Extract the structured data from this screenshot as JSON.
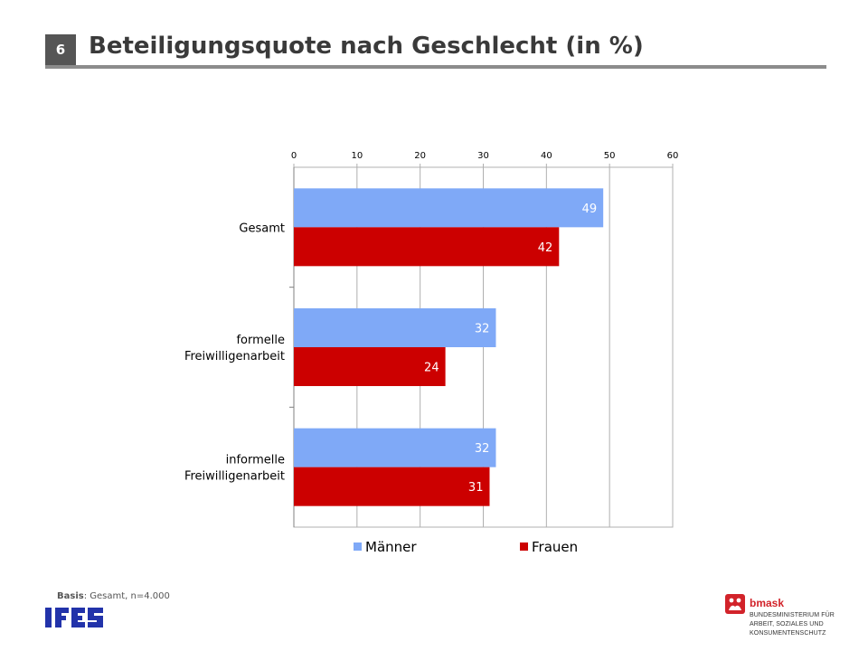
{
  "header": {
    "slide_number": "6",
    "title": "Beteiligungsquote nach Geschlecht (in %)"
  },
  "footer": {
    "basis_label": "Basis",
    "basis_text": ": Gesamt, n=4.000",
    "ifes_logo_text": "IFES",
    "bmask_name": "bmask",
    "bmask_lines": [
      "BUNDESMINISTERIUM FÜR",
      "ARBEIT, SOZIALES UND",
      "KONSUMENTENSCHUTZ"
    ]
  },
  "colors": {
    "maenner": "#7fa9f7",
    "frauen": "#cc0000",
    "label_text": "#ffffff",
    "grid": "#b0b0b0",
    "brand_red": "#d2232a",
    "ifes_blue": "#2233aa"
  },
  "chart_data": {
    "type": "bar",
    "orientation": "horizontal",
    "categories": [
      "Gesamt",
      "formelle Freiwilligenarbeit",
      "informelle Freiwilligenarbeit"
    ],
    "category_lines": [
      [
        "Gesamt"
      ],
      [
        "formelle",
        "Freiwilligenarbeit"
      ],
      [
        "informelle",
        "Freiwilligenarbeit"
      ]
    ],
    "series": [
      {
        "name": "Männer",
        "values": [
          49,
          32,
          32
        ]
      },
      {
        "name": "Frauen",
        "values": [
          42,
          24,
          31
        ]
      }
    ],
    "xlim": [
      0,
      60
    ],
    "ticks": [
      0,
      10,
      20,
      30,
      40,
      50,
      60
    ],
    "tick_labels": [
      "0",
      "10",
      "20",
      "30",
      "40",
      "50",
      "60"
    ],
    "axis_position": "top",
    "grid": true,
    "legend_position": "bottom",
    "data_labels": true
  }
}
